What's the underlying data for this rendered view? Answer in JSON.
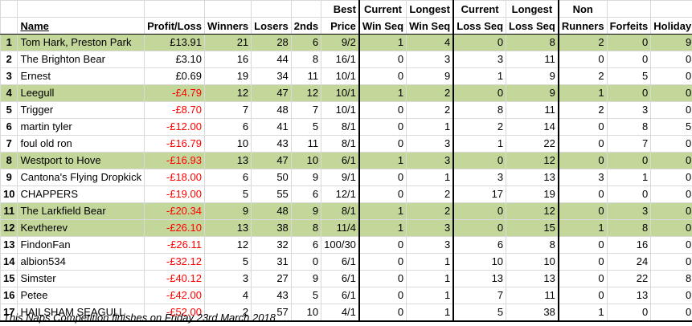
{
  "headers": {
    "name": "Name",
    "profit_loss": "Profit/Loss",
    "winners": "Winners",
    "losers": "Losers",
    "seconds": "2nds",
    "best_price_top": "Best",
    "best_price_bottom": "Price",
    "current_win_top": "Current",
    "current_win_bottom": "Win Seq",
    "longest_win_top": "Longest",
    "longest_win_bottom": "Win Seq",
    "current_loss_top": "Current",
    "current_loss_bottom": "Loss Seq",
    "longest_loss_top": "Longest",
    "longest_loss_bottom": "Loss Seq",
    "non_runners_top": "Non",
    "non_runners_bottom": "Runners",
    "forfeits": "Forfeits",
    "holiday": "Holiday"
  },
  "rows": [
    {
      "rank": "1",
      "name": "Tom Hark, Preston Park",
      "pl": "£13.91",
      "neg": false,
      "winners": "21",
      "losers": "28",
      "seconds": "6",
      "best": "9/2",
      "cw": "1",
      "lw": "4",
      "cl": "0",
      "ll": "8",
      "nr": "2",
      "ff": "0",
      "hol": "9",
      "green": true
    },
    {
      "rank": "2",
      "name": "The Brighton Bear",
      "pl": "£3.10",
      "neg": false,
      "winners": "16",
      "losers": "44",
      "seconds": "8",
      "best": "16/1",
      "cw": "0",
      "lw": "3",
      "cl": "3",
      "ll": "11",
      "nr": "0",
      "ff": "0",
      "hol": "0",
      "green": false
    },
    {
      "rank": "3",
      "name": "Ernest",
      "pl": "£0.69",
      "neg": false,
      "winners": "19",
      "losers": "34",
      "seconds": "11",
      "best": "10/1",
      "cw": "0",
      "lw": "9",
      "cl": "1",
      "ll": "9",
      "nr": "2",
      "ff": "5",
      "hol": "0",
      "green": false
    },
    {
      "rank": "4",
      "name": "Leegull",
      "pl": "-£4.79",
      "neg": true,
      "winners": "12",
      "losers": "47",
      "seconds": "12",
      "best": "10/1",
      "cw": "1",
      "lw": "2",
      "cl": "0",
      "ll": "9",
      "nr": "1",
      "ff": "0",
      "hol": "0",
      "green": true
    },
    {
      "rank": "5",
      "name": "Trigger",
      "pl": "-£8.70",
      "neg": true,
      "winners": "7",
      "losers": "48",
      "seconds": "7",
      "best": "10/1",
      "cw": "0",
      "lw": "2",
      "cl": "8",
      "ll": "11",
      "nr": "2",
      "ff": "3",
      "hol": "0",
      "green": false
    },
    {
      "rank": "6",
      "name": "martin tyler",
      "pl": "-£12.00",
      "neg": true,
      "winners": "6",
      "losers": "41",
      "seconds": "5",
      "best": "8/1",
      "cw": "0",
      "lw": "1",
      "cl": "2",
      "ll": "14",
      "nr": "0",
      "ff": "8",
      "hol": "5",
      "green": false
    },
    {
      "rank": "7",
      "name": "foul old ron",
      "pl": "-£16.79",
      "neg": true,
      "winners": "10",
      "losers": "43",
      "seconds": "11",
      "best": "8/1",
      "cw": "0",
      "lw": "3",
      "cl": "1",
      "ll": "22",
      "nr": "0",
      "ff": "7",
      "hol": "0",
      "green": false
    },
    {
      "rank": "8",
      "name": "Westport to Hove",
      "pl": "-£16.93",
      "neg": true,
      "winners": "13",
      "losers": "47",
      "seconds": "10",
      "best": "6/1",
      "cw": "1",
      "lw": "3",
      "cl": "0",
      "ll": "12",
      "nr": "0",
      "ff": "0",
      "hol": "0",
      "green": true
    },
    {
      "rank": "9",
      "name": "Cantona's Flying Dropkick",
      "pl": "-£18.00",
      "neg": true,
      "winners": "6",
      "losers": "50",
      "seconds": "9",
      "best": "9/1",
      "cw": "0",
      "lw": "1",
      "cl": "3",
      "ll": "13",
      "nr": "3",
      "ff": "1",
      "hol": "0",
      "green": false
    },
    {
      "rank": "10",
      "name": "CHAPPERS",
      "pl": "-£19.00",
      "neg": true,
      "winners": "5",
      "losers": "55",
      "seconds": "6",
      "best": "12/1",
      "cw": "0",
      "lw": "2",
      "cl": "17",
      "ll": "19",
      "nr": "0",
      "ff": "0",
      "hol": "0",
      "green": false
    },
    {
      "rank": "11",
      "name": "The Larkfield Bear",
      "pl": "-£20.34",
      "neg": true,
      "winners": "9",
      "losers": "48",
      "seconds": "9",
      "best": "8/1",
      "cw": "1",
      "lw": "2",
      "cl": "0",
      "ll": "12",
      "nr": "0",
      "ff": "3",
      "hol": "0",
      "green": true
    },
    {
      "rank": "12",
      "name": "Kevtherev",
      "pl": "-£26.10",
      "neg": true,
      "winners": "13",
      "losers": "38",
      "seconds": "8",
      "best": "11/4",
      "cw": "1",
      "lw": "3",
      "cl": "0",
      "ll": "15",
      "nr": "1",
      "ff": "8",
      "hol": "0",
      "green": true
    },
    {
      "rank": "13",
      "name": "FindonFan",
      "pl": "-£26.11",
      "neg": true,
      "winners": "12",
      "losers": "32",
      "seconds": "6",
      "best": "100/30",
      "cw": "0",
      "lw": "3",
      "cl": "6",
      "ll": "8",
      "nr": "0",
      "ff": "16",
      "hol": "0",
      "green": false
    },
    {
      "rank": "14",
      "name": "albion534",
      "pl": "-£32.12",
      "neg": true,
      "winners": "5",
      "losers": "31",
      "seconds": "0",
      "best": "6/1",
      "cw": "0",
      "lw": "1",
      "cl": "10",
      "ll": "10",
      "nr": "0",
      "ff": "24",
      "hol": "0",
      "green": false
    },
    {
      "rank": "15",
      "name": "Simster",
      "pl": "-£40.12",
      "neg": true,
      "winners": "3",
      "losers": "27",
      "seconds": "9",
      "best": "6/1",
      "cw": "0",
      "lw": "1",
      "cl": "13",
      "ll": "13",
      "nr": "0",
      "ff": "22",
      "hol": "8",
      "green": false
    },
    {
      "rank": "16",
      "name": "Petee",
      "pl": "-£42.00",
      "neg": true,
      "winners": "4",
      "losers": "43",
      "seconds": "5",
      "best": "6/1",
      "cw": "0",
      "lw": "1",
      "cl": "7",
      "ll": "11",
      "nr": "0",
      "ff": "13",
      "hol": "0",
      "green": false
    },
    {
      "rank": "17",
      "name": "HAILSHAM SEAGULL",
      "pl": "-£52.00",
      "neg": true,
      "winners": "2",
      "losers": "57",
      "seconds": "10",
      "best": "4/1",
      "cw": "0",
      "lw": "1",
      "cl": "5",
      "ll": "38",
      "nr": "1",
      "ff": "0",
      "hol": "0",
      "green": false
    }
  ],
  "footer": "This Naps Competition finishes on Friday 23rd March 2018",
  "colors": {
    "green_row": "#c4d79b",
    "negative": "#ff0000",
    "grid": "#d9d9d9"
  }
}
